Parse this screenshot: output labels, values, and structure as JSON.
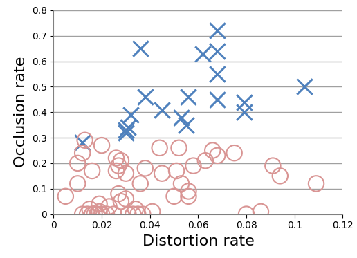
{
  "chart_data": {
    "type": "scatter",
    "x_label": "Distortion rate",
    "y_label": "Occlusion rate",
    "xlim": [
      0,
      0.12
    ],
    "xticks": [
      0,
      0.02,
      0.04,
      0.06,
      0.08,
      0.1,
      0.12
    ],
    "ylim": [
      0,
      0.8
    ],
    "yticks": [
      0,
      0.1,
      0.2,
      0.3,
      0.4,
      0.5,
      0.6,
      0.7,
      0.8
    ],
    "grid": "y",
    "series": [
      {
        "color": "#4f81bd",
        "marker": "x",
        "x": [
          0.012,
          0.03,
          0.03,
          0.031,
          0.032,
          0.036,
          0.038,
          0.045,
          0.053,
          0.055,
          0.056,
          0.062,
          0.068,
          0.068,
          0.068,
          0.068,
          0.079,
          0.079,
          0.104
        ],
        "values": [
          0.28,
          0.32,
          0.33,
          0.34,
          0.39,
          0.65,
          0.46,
          0.41,
          0.38,
          0.35,
          0.46,
          0.63,
          0.72,
          0.64,
          0.55,
          0.45,
          0.44,
          0.4,
          0.5
        ]
      },
      {
        "color": "#d99594",
        "marker": "o",
        "x": [
          0.005,
          0.01,
          0.01,
          0.012,
          0.012,
          0.013,
          0.014,
          0.015,
          0.016,
          0.016,
          0.017,
          0.018,
          0.019,
          0.019,
          0.02,
          0.02,
          0.022,
          0.023,
          0.025,
          0.026,
          0.026,
          0.027,
          0.028,
          0.027,
          0.028,
          0.03,
          0.03,
          0.031,
          0.033,
          0.034,
          0.035,
          0.036,
          0.037,
          0.038,
          0.041,
          0.044,
          0.045,
          0.05,
          0.051,
          0.052,
          0.053,
          0.056,
          0.056,
          0.058,
          0.063,
          0.066,
          0.068,
          0.075,
          0.08,
          0.086,
          0.091,
          0.094,
          0.109
        ],
        "values": [
          0.07,
          0.2,
          0.12,
          0.24,
          0.0,
          0.29,
          0.0,
          0.02,
          0.0,
          0.17,
          0.0,
          0.0,
          0.01,
          0.04,
          0.27,
          0.0,
          0.0,
          0.03,
          0.0,
          0.17,
          0.22,
          0.19,
          0.21,
          0.08,
          0.05,
          0.06,
          0.16,
          0.0,
          0.0,
          0.02,
          0.0,
          0.12,
          0.0,
          0.18,
          0.01,
          0.26,
          0.16,
          0.07,
          0.17,
          0.26,
          0.12,
          0.09,
          0.07,
          0.19,
          0.21,
          0.25,
          0.23,
          0.24,
          0.0,
          0.01,
          0.19,
          0.15,
          0.12
        ]
      }
    ]
  }
}
